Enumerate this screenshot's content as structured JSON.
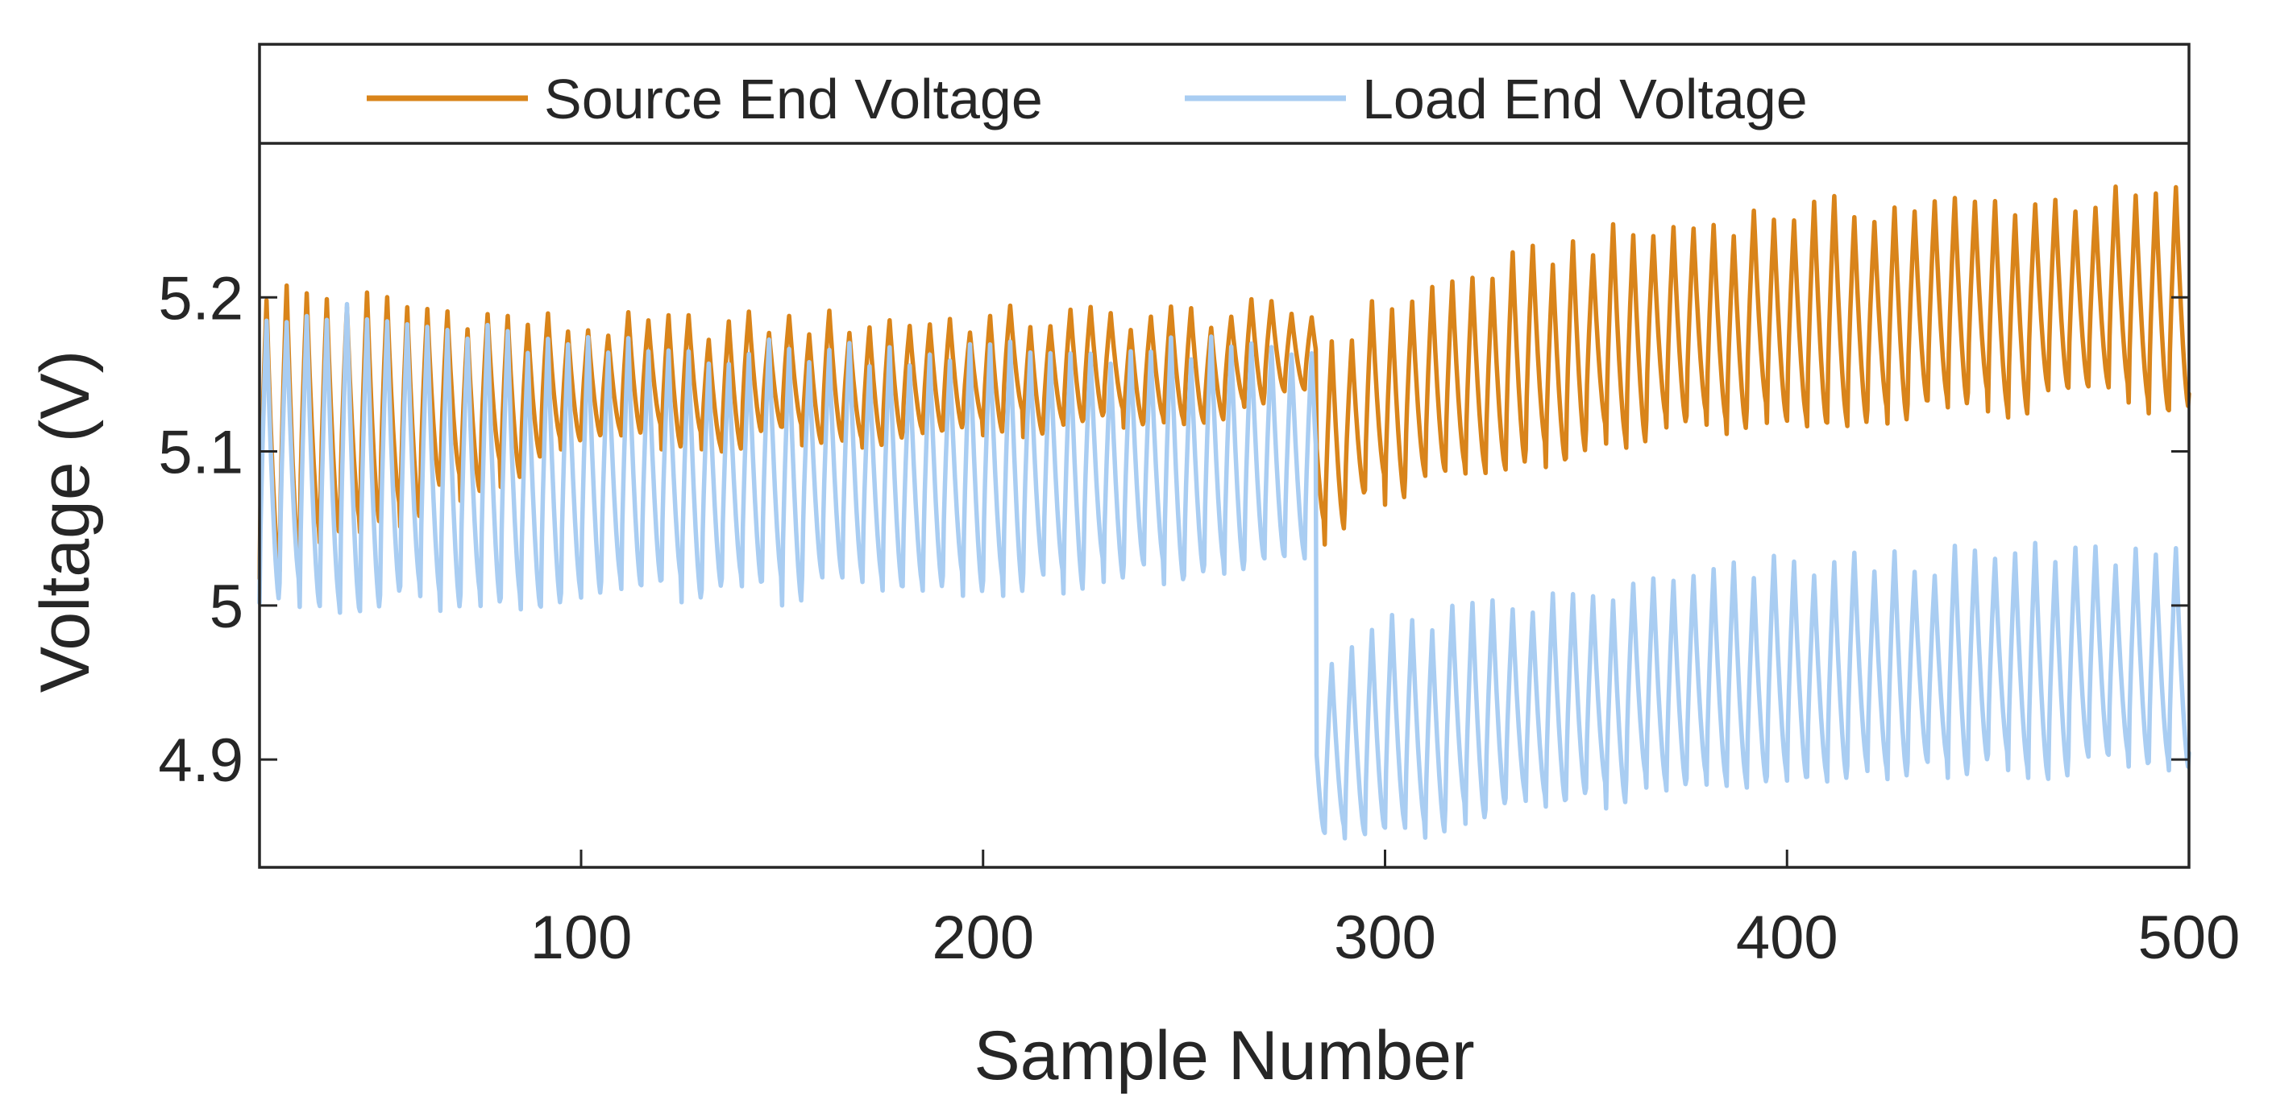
{
  "chart_data": {
    "type": "line",
    "title": "",
    "xlabel": "Sample Number",
    "ylabel": "Voltage (V)",
    "xlim": [
      20,
      500
    ],
    "ylim": [
      4.83,
      5.3
    ],
    "x_ticks": [
      100,
      200,
      300,
      400,
      500
    ],
    "x_tick_labels": [
      "100",
      "200",
      "300",
      "400",
      "500"
    ],
    "y_ticks": [
      4.9,
      5.0,
      5.1,
      5.2
    ],
    "y_tick_labels": [
      "4.9",
      "5",
      "5.1",
      "5.2"
    ],
    "grid": false,
    "legend_position": "top",
    "oscillation_period_samples": 5,
    "step_change_at_sample": 283,
    "series": [
      {
        "name": "Source End Voltage",
        "color": "#D9841A",
        "envelope_x": [
          20,
          100,
          200,
          282,
          283,
          300,
          350,
          400,
          500
        ],
        "envelope_max": [
          5.21,
          5.185,
          5.19,
          5.195,
          5.17,
          5.2,
          5.24,
          5.26,
          5.27
        ],
        "envelope_min": [
          5.02,
          5.1,
          5.11,
          5.13,
          5.04,
          5.07,
          5.1,
          5.12,
          5.13
        ]
      },
      {
        "name": "Load End Voltage",
        "color": "#A9CDF2",
        "envelope_x": [
          20,
          100,
          200,
          282,
          283,
          300,
          350,
          400,
          500
        ],
        "envelope_max": [
          5.2,
          5.17,
          5.17,
          5.17,
          4.97,
          4.99,
          5.01,
          5.03,
          5.04
        ],
        "envelope_min": [
          5.0,
          5.0,
          5.01,
          5.02,
          4.84,
          4.85,
          4.87,
          4.89,
          4.89
        ]
      }
    ]
  }
}
